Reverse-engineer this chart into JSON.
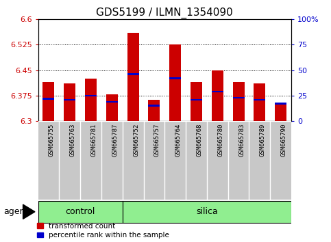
{
  "title": "GDS5199 / ILMN_1354090",
  "samples": [
    "GSM665755",
    "GSM665763",
    "GSM665781",
    "GSM665787",
    "GSM665752",
    "GSM665757",
    "GSM665764",
    "GSM665768",
    "GSM665780",
    "GSM665783",
    "GSM665789",
    "GSM665790"
  ],
  "groups": [
    "control",
    "control",
    "control",
    "control",
    "silica",
    "silica",
    "silica",
    "silica",
    "silica",
    "silica",
    "silica",
    "silica"
  ],
  "transformed_count": [
    6.415,
    6.41,
    6.425,
    6.378,
    6.56,
    6.362,
    6.525,
    6.415,
    6.45,
    6.415,
    6.41,
    6.355
  ],
  "percentile_rank": [
    22,
    21,
    25,
    19,
    46,
    15,
    42,
    21,
    29,
    23,
    21,
    17
  ],
  "base": 6.3,
  "ylim": [
    6.3,
    6.6
  ],
  "yticks": [
    6.3,
    6.375,
    6.45,
    6.525,
    6.6
  ],
  "ytick_labels": [
    "6.3",
    "6.375",
    "6.45",
    "6.525",
    "6.6"
  ],
  "right_yticks": [
    0,
    25,
    50,
    75,
    100
  ],
  "right_ylim": [
    0,
    100
  ],
  "bar_color": "#cc0000",
  "percentile_color": "#0000cc",
  "group_fill": "#90ee90",
  "label_bg": "#c8c8c8",
  "bar_width": 0.55,
  "title_fontsize": 11,
  "tick_fontsize": 8,
  "sample_fontsize": 6.5,
  "group_fontsize": 9,
  "legend_fontsize": 7.5,
  "agent_fontsize": 9
}
